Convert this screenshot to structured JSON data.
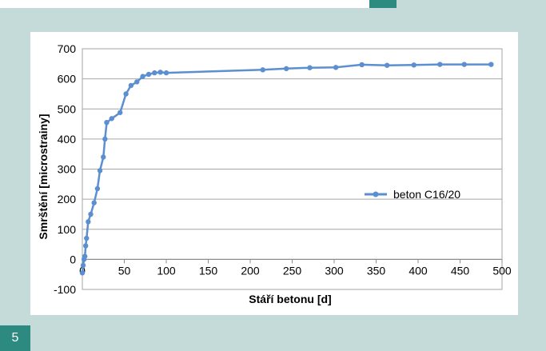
{
  "figure_number": "5",
  "chart_data": {
    "type": "line",
    "title": "",
    "xlabel": "Stáří betonu [d]",
    "ylabel": "Smrštění [microstrainy]",
    "xlim": [
      0,
      500
    ],
    "ylim": [
      -100,
      700
    ],
    "x_ticks": [
      "0",
      "50",
      "100",
      "150",
      "200",
      "250",
      "300",
      "350",
      "400",
      "450",
      "500"
    ],
    "y_ticks": [
      "-100",
      "0",
      "100",
      "200",
      "300",
      "400",
      "500",
      "600",
      "700"
    ],
    "grid": "horizontal",
    "legend_position": "right",
    "series": [
      {
        "name": "beton C16/20",
        "color": "#5b8fd0",
        "x": [
          0,
          1,
          2,
          3,
          4,
          5,
          7,
          10,
          14,
          18,
          21,
          25,
          27,
          29,
          35,
          45,
          52,
          58,
          65,
          72,
          79,
          86,
          93,
          100,
          215,
          243,
          271,
          302,
          333,
          363,
          395,
          426,
          455,
          487
        ],
        "y": [
          -45,
          -20,
          0,
          10,
          45,
          70,
          125,
          150,
          188,
          235,
          295,
          340,
          400,
          455,
          468,
          488,
          550,
          578,
          590,
          608,
          615,
          620,
          622,
          620,
          630,
          634,
          637,
          638,
          647,
          645,
          646,
          648,
          648,
          648
        ]
      }
    ]
  }
}
